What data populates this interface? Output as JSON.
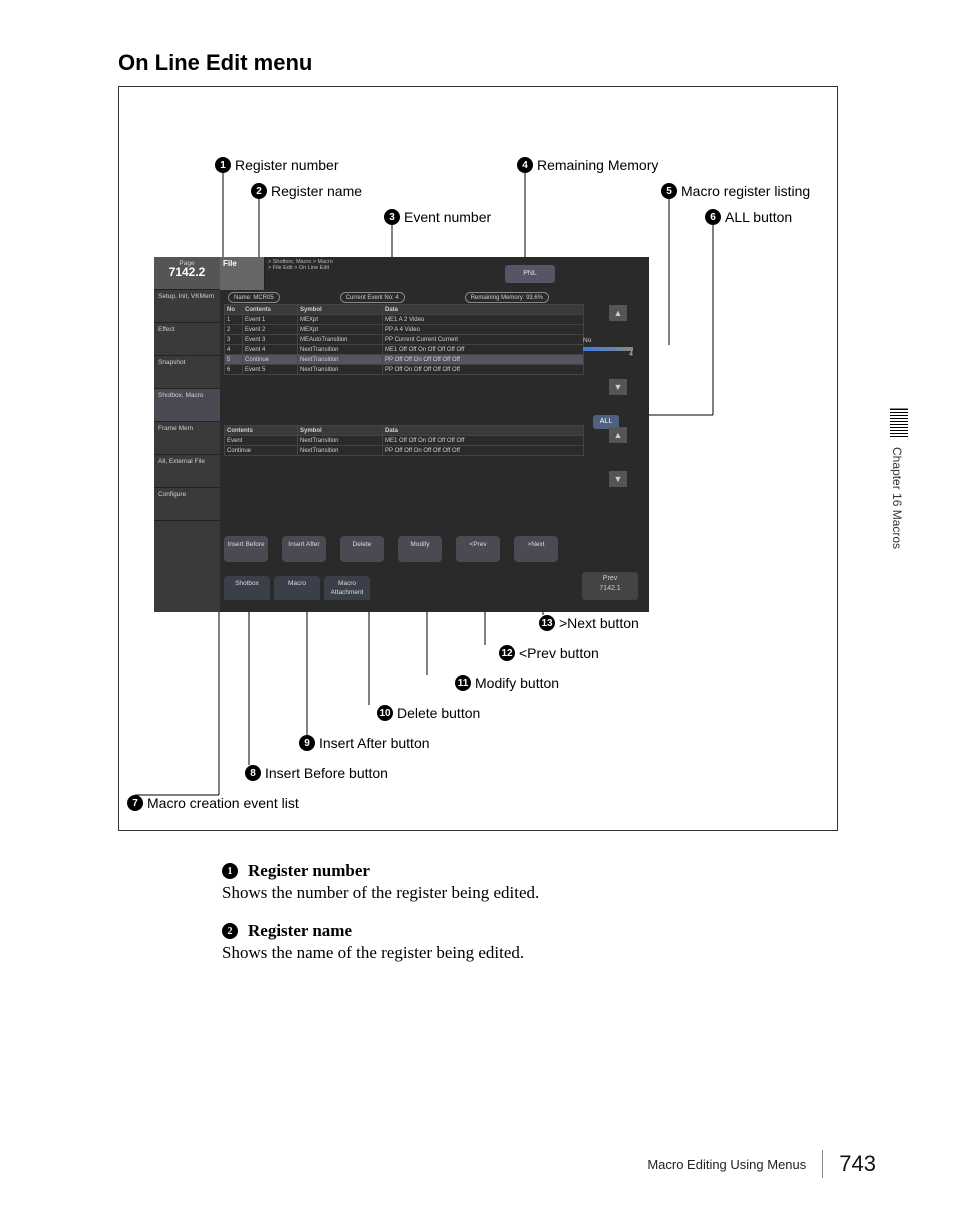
{
  "page": {
    "title": "On Line Edit menu",
    "side_tab": "Chapter 16  Macros",
    "footer_section": "Macro Editing Using Menus",
    "footer_page": "743"
  },
  "callouts": {
    "c1": "Register number",
    "c2": "Register name",
    "c3": "Event number",
    "c4": "Remaining Memory",
    "c5": "Macro register listing",
    "c6": "ALL button",
    "c7": "Macro creation event list",
    "c8": "Insert Before button",
    "c9": "Insert After button",
    "c10": "Delete button",
    "c11": "Modify button",
    "c12": "<Prev button",
    "c13": ">Next button"
  },
  "screen": {
    "sidebar": {
      "page_label": "Page",
      "page_num": "7142.2",
      "items": [
        "Setup, Init,\nVKMem",
        "Effect",
        "Snapshot",
        "Shotbox,\nMacro",
        "Frame Mem",
        "All,\nExternal File",
        "Configure"
      ]
    },
    "file": {
      "title": "File",
      "sub1": "> Shotbox, Macro > Macro",
      "sub2": "> File Edit > On Line Edit"
    },
    "pnl": "PNL",
    "info": {
      "name": "Name: MCR05",
      "event": "Current Event No: 4",
      "mem": "Remaining Memory: 93.6%"
    },
    "table1": {
      "headers": [
        "No",
        "Contents",
        "Symbol",
        "Data"
      ],
      "rows": [
        [
          "1",
          "Event 1",
          "MEXpt",
          "ME1 A 2 Video"
        ],
        [
          "2",
          "Event 2",
          "MEXpt",
          "PP A 4 Video"
        ],
        [
          "3",
          "Event 3",
          "MEAutoTransition",
          "PP Current Current Current"
        ],
        [
          "4",
          "Event 4",
          "NextTransition",
          "ME1 Off Off On Off Off Off Off"
        ],
        [
          "5",
          "Continue",
          "NextTransition",
          "PP Off Off On Off Off Off Off"
        ],
        [
          "6",
          "Event 5",
          "NextTransition",
          "PP Off On Off Off Off Off Off"
        ]
      ],
      "selected_row": 4
    },
    "table2": {
      "headers": [
        "Contents",
        "Symbol",
        "Data"
      ],
      "header_label": "Event",
      "rows": [
        [
          "Event",
          "NextTransition",
          "ME1 Off Off On Off Off Off Off"
        ],
        [
          "Continue",
          "NextTransition",
          "PP Off Off On Off Off Off Off"
        ]
      ]
    },
    "all_button": "ALL",
    "no_panel": {
      "label": "No",
      "value": "4"
    },
    "buttons": [
      "Insert\nBefore",
      "Insert\nAfter",
      "Delete",
      "Modify",
      "<Prev",
      ">Next"
    ],
    "tabs": [
      "Shotbox",
      "Macro",
      "Macro\nAttachment"
    ],
    "prev_box": {
      "label": "Prev",
      "value": "7142.1"
    }
  },
  "desc": {
    "d1": {
      "title": "Register number",
      "body": "Shows the number of the register being edited."
    },
    "d2": {
      "title": "Register name",
      "body": "Shows the name of the register being edited."
    }
  },
  "colors": {
    "screen_bg": "#2a2a2a",
    "sidebar_bg": "#3a3a3a",
    "accent": "#506080"
  }
}
